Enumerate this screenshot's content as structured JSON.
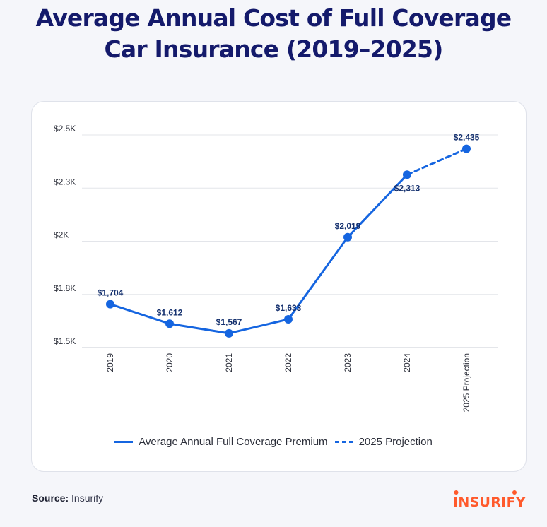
{
  "title_line1": "Average Annual Cost of Full Coverage",
  "title_line2": "Car Insurance (2019–2025)",
  "chart_data": {
    "type": "line",
    "title": "Average Annual Cost of Full Coverage Car Insurance (2019–2025)",
    "categories": [
      "2019",
      "2020",
      "2021",
      "2022",
      "2023",
      "2024",
      "2025 Projection"
    ],
    "series": [
      {
        "name": "Average Annual Full Coverage Premium",
        "style": "solid",
        "values": [
          1704,
          1612,
          1567,
          1633,
          2019,
          2313,
          null
        ],
        "labels": [
          "$1,704",
          "$1,612",
          "$1,567",
          "$1,633",
          "$2,019",
          "$2,313",
          null
        ]
      },
      {
        "name": "2025 Projection",
        "style": "dashed",
        "values": [
          null,
          null,
          null,
          null,
          null,
          2313,
          2435
        ],
        "labels": [
          null,
          null,
          null,
          null,
          null,
          null,
          "$2,435"
        ]
      }
    ],
    "yticks": [
      1500,
      1750,
      2000,
      2250,
      2500
    ],
    "ytick_labels": [
      "$1.5K",
      "$1.8K",
      "$2K",
      "$2.3K",
      "$2.5K"
    ],
    "ylim": [
      1500,
      2500
    ],
    "xlabel": "",
    "ylabel": "",
    "grid": true,
    "legend_position": "bottom",
    "color": "#1565e0"
  },
  "legend": {
    "item1": "Average Annual Full Coverage Premium",
    "item2": "2025 Projection"
  },
  "source": {
    "label": "Source:",
    "value": "Insurify"
  },
  "logo": {
    "text": "INSURIFY",
    "color": "#ff5a2c"
  }
}
